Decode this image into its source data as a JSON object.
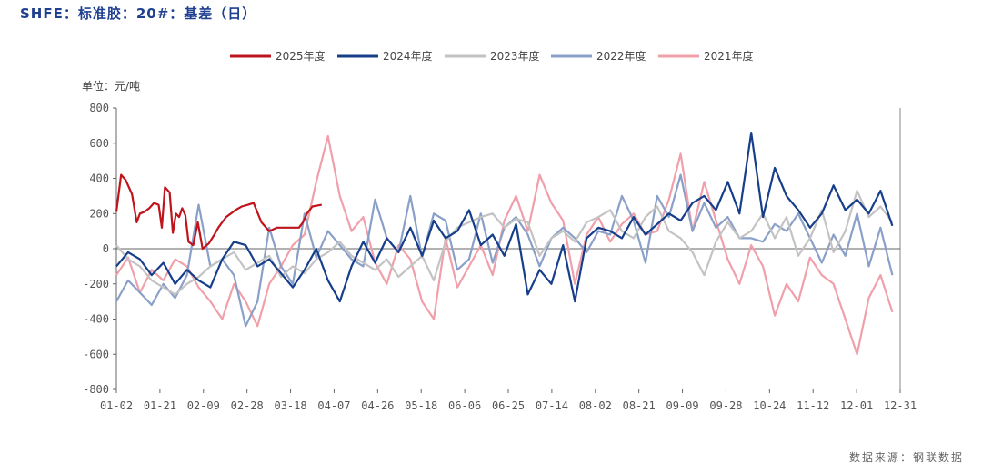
{
  "title": "SHFE：标准胶：20#：基差（日）",
  "unit": "单位：元/吨",
  "source": "数据来源：钢联数据",
  "chart_data": {
    "type": "line",
    "xlabel": "",
    "ylabel": "单位：元/吨",
    "ylim": [
      -800,
      800
    ],
    "yticks": [
      800,
      600,
      400,
      200,
      0,
      -200,
      -400,
      -600,
      -800
    ],
    "x_tick_labels": [
      "01-02",
      "01-21",
      "02-09",
      "02-28",
      "03-18",
      "04-07",
      "04-26",
      "05-18",
      "06-06",
      "06-25",
      "07-14",
      "08-02",
      "08-21",
      "09-09",
      "09-28",
      "10-24",
      "11-12",
      "12-01",
      "12-31"
    ],
    "x_range": [
      0,
      100
    ],
    "series": [
      {
        "name": "2025年度",
        "color": "#c0141c",
        "x": [
          0,
          0.6,
          1.2,
          2,
          2.6,
          3,
          3.6,
          4.2,
          4.8,
          5.4,
          5.8,
          6.2,
          6.8,
          7.2,
          7.6,
          8,
          8.4,
          8.8,
          9.2,
          9.8,
          10.4,
          11,
          11.8,
          12.5,
          13,
          13.5,
          14,
          14.6,
          15.2,
          16,
          16.8,
          17.5,
          18.5,
          19.5,
          20.5,
          21.5,
          22.5,
          23.3,
          23.8,
          24.3,
          25,
          26.2
        ],
        "y": [
          210,
          420,
          390,
          310,
          150,
          200,
          210,
          230,
          260,
          250,
          120,
          350,
          320,
          90,
          200,
          180,
          230,
          190,
          40,
          20,
          150,
          0,
          30,
          80,
          120,
          150,
          180,
          200,
          220,
          240,
          250,
          260,
          150,
          100,
          120,
          120,
          120,
          120,
          150,
          200,
          240,
          250
        ]
      },
      {
        "name": "2024年度",
        "color": "#173e8a",
        "x": [
          0,
          1.5,
          3,
          4.5,
          6,
          7.5,
          9,
          10.5,
          12,
          13.5,
          15,
          16.5,
          18,
          19.5,
          21,
          22.5,
          24,
          25.5,
          27,
          28.5,
          30,
          31.5,
          33,
          34.5,
          36,
          37.5,
          39,
          40.5,
          42,
          43.5,
          45,
          46.5,
          48,
          49.5,
          51,
          52.5,
          54,
          55.5,
          57,
          58.5,
          60,
          61.5,
          63,
          64.5,
          66,
          67.5,
          69,
          70.5,
          72,
          73.5,
          75,
          76.5,
          78,
          79.5,
          81,
          82.5,
          84,
          85.5,
          87,
          88.5,
          90,
          91.5,
          93,
          94.5,
          96,
          97.5,
          99
        ],
        "y": [
          -100,
          -20,
          -60,
          -150,
          -80,
          -200,
          -120,
          -180,
          -220,
          -60,
          40,
          20,
          -100,
          -60,
          -140,
          -220,
          -120,
          0,
          -180,
          -300,
          -100,
          40,
          -80,
          60,
          -20,
          120,
          -40,
          160,
          60,
          100,
          220,
          20,
          80,
          -40,
          140,
          -260,
          -120,
          -200,
          20,
          -300,
          60,
          120,
          100,
          60,
          180,
          80,
          140,
          200,
          160,
          260,
          300,
          220,
          380,
          200,
          660,
          180,
          460,
          300,
          220,
          120,
          200,
          360,
          220,
          280,
          200,
          330,
          130
        ]
      },
      {
        "name": "2023年度",
        "color": "#c3c3c3",
        "x": [
          0,
          1.5,
          3,
          4.5,
          6,
          7.5,
          9,
          10.5,
          12,
          13.5,
          15,
          16.5,
          18,
          19.5,
          21,
          22.5,
          24,
          25.5,
          27,
          28.5,
          30,
          31.5,
          33,
          34.5,
          36,
          37.5,
          39,
          40.5,
          42,
          43.5,
          45,
          46.5,
          48,
          49.5,
          51,
          52.5,
          54,
          55.5,
          57,
          58.5,
          60,
          61.5,
          63,
          64.5,
          66,
          67.5,
          69,
          70.5,
          72,
          73.5,
          75,
          76.5,
          78,
          79.5,
          81,
          82.5,
          84,
          85.5,
          87,
          88.5,
          90,
          91.5,
          93,
          94.5,
          96,
          97.5,
          99
        ],
        "y": [
          20,
          -60,
          -100,
          -180,
          -220,
          -260,
          -200,
          -160,
          -100,
          -60,
          -20,
          -120,
          -80,
          -40,
          -160,
          -100,
          -140,
          -60,
          -20,
          40,
          -40,
          -80,
          -120,
          -60,
          -160,
          -100,
          -40,
          -180,
          40,
          120,
          150,
          180,
          200,
          120,
          170,
          150,
          -40,
          60,
          100,
          40,
          150,
          180,
          220,
          100,
          60,
          180,
          240,
          100,
          60,
          -20,
          -150,
          40,
          150,
          60,
          100,
          200,
          60,
          180,
          -40,
          60,
          220,
          -20,
          100,
          330,
          180,
          240,
          150
        ]
      },
      {
        "name": "2022年度",
        "color": "#8aa0c8",
        "x": [
          0,
          1.5,
          3,
          4.5,
          6,
          7.5,
          9,
          10.5,
          12,
          13.5,
          15,
          16.5,
          18,
          19.5,
          21,
          22.5,
          24,
          25.5,
          27,
          28.5,
          30,
          31.5,
          33,
          34.5,
          36,
          37.5,
          39,
          40.5,
          42,
          43.5,
          45,
          46.5,
          48,
          49.5,
          51,
          52.5,
          54,
          55.5,
          57,
          58.5,
          60,
          61.5,
          63,
          64.5,
          66,
          67.5,
          69,
          70.5,
          72,
          73.5,
          75,
          76.5,
          78,
          79.5,
          81,
          82.5,
          84,
          85.5,
          87,
          88.5,
          90,
          91.5,
          93,
          94.5,
          96,
          97.5,
          99
        ],
        "y": [
          -300,
          -180,
          -250,
          -320,
          -200,
          -280,
          -150,
          250,
          -100,
          -60,
          -150,
          -440,
          -300,
          120,
          -100,
          -200,
          200,
          -50,
          100,
          20,
          -60,
          -100,
          280,
          60,
          -20,
          300,
          -50,
          200,
          160,
          -120,
          -60,
          200,
          -80,
          120,
          180,
          80,
          -100,
          60,
          120,
          60,
          -20,
          100,
          80,
          300,
          160,
          -80,
          300,
          180,
          420,
          100,
          260,
          120,
          180,
          60,
          60,
          40,
          140,
          100,
          200,
          60,
          -80,
          80,
          -40,
          200,
          -100,
          120,
          -150
        ]
      },
      {
        "name": "2021年度",
        "color": "#f0a0aa",
        "x": [
          0,
          1.5,
          3,
          4.5,
          6,
          7.5,
          9,
          10.5,
          12,
          13.5,
          15,
          16.5,
          18,
          19.5,
          21,
          22.5,
          24,
          25.5,
          27,
          28.5,
          30,
          31.5,
          33,
          34.5,
          36,
          37.5,
          39,
          40.5,
          42,
          43.5,
          45,
          46.5,
          48,
          49.5,
          51,
          52.5,
          54,
          55.5,
          57,
          58.5,
          60,
          61.5,
          63,
          64.5,
          66,
          67.5,
          69,
          70.5,
          72,
          73.5,
          75,
          76.5,
          78,
          79.5,
          81,
          82.5,
          84,
          85.5,
          87,
          88.5,
          90,
          91.5,
          93,
          94.5,
          96,
          97.5,
          99
        ],
        "y": [
          -150,
          -50,
          -250,
          -120,
          -180,
          -60,
          -100,
          -220,
          -300,
          -400,
          -200,
          -300,
          -440,
          -200,
          -100,
          20,
          80,
          380,
          640,
          300,
          100,
          180,
          -80,
          -200,
          20,
          -60,
          -300,
          -400,
          60,
          -220,
          -100,
          20,
          -150,
          160,
          300,
          100,
          420,
          260,
          160,
          -200,
          80,
          180,
          40,
          140,
          200,
          80,
          100,
          280,
          540,
          100,
          380,
          160,
          -60,
          -200,
          20,
          -100,
          -380,
          -200,
          -300,
          -50,
          -150,
          -200,
          -400,
          -600,
          -280,
          -150,
          -360
        ]
      }
    ]
  }
}
